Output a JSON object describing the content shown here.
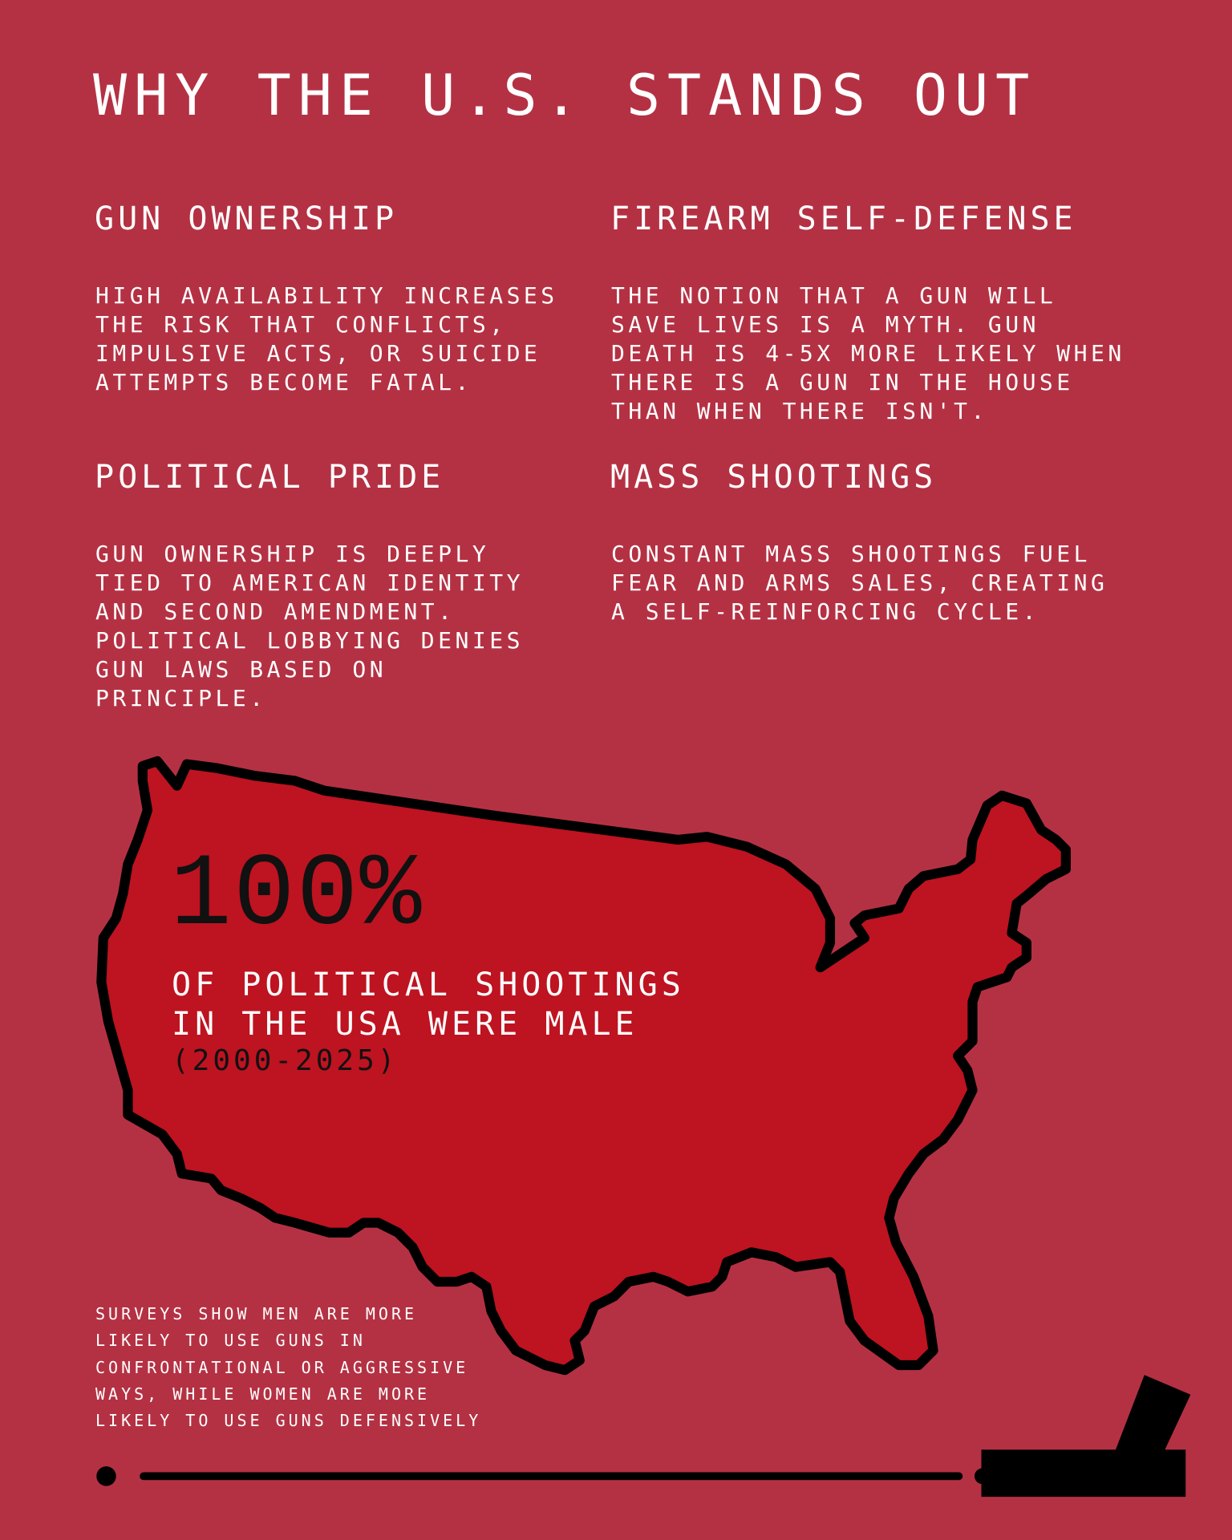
{
  "title": "WHY THE U.S. STANDS OUT",
  "sections": [
    {
      "heading": "GUN OWNERSHIP",
      "body": "HIGH AVAILABILITY INCREASES\nTHE RISK THAT CONFLICTS,\nIMPULSIVE ACTS, OR SUICIDE\nATTEMPTS BECOME FATAL."
    },
    {
      "heading": "FIREARM SELF-DEFENSE",
      "body": "THE NOTION THAT A GUN WILL\nSAVE LIVES IS A MYTH. GUN\nDEATH IS 4-5X MORE LIKELY WHEN\nTHERE IS A GUN IN THE HOUSE\nTHAN WHEN THERE ISN'T."
    },
    {
      "heading": "POLITICAL PRIDE",
      "body": "GUN OWNERSHIP IS DEEPLY\nTIED TO AMERICAN IDENTITY\nAND SECOND AMENDMENT.\nPOLITICAL LOBBYING DENIES\nGUN LAWS BASED ON\nPRINCIPLE."
    },
    {
      "heading": "MASS SHOOTINGS",
      "body": "CONSTANT MASS SHOOTINGS FUEL\nFEAR AND ARMS SALES, CREATING\nA SELF-REINFORCING CYCLE."
    }
  ],
  "stat": {
    "value": "100%",
    "line1": "OF POLITICAL SHOOTINGS",
    "line2": "IN THE USA WERE MALE",
    "period": "(2000-2025)"
  },
  "note": "SURVEYS SHOW MEN ARE MORE\nLIKELY TO USE GUNS IN\nCONFRONTATIONAL OR AGGRESSIVE\nWAYS, WHILE WOMEN ARE MORE\nLIKELY TO USE GUNS DEFENSIVELY",
  "icons": {
    "map": "usa-map-icon",
    "gun": "gun-icon"
  },
  "colors": {
    "background": "#b43143",
    "map_fill": "#be1320",
    "outline": "#000000",
    "text": "#ffffff"
  }
}
